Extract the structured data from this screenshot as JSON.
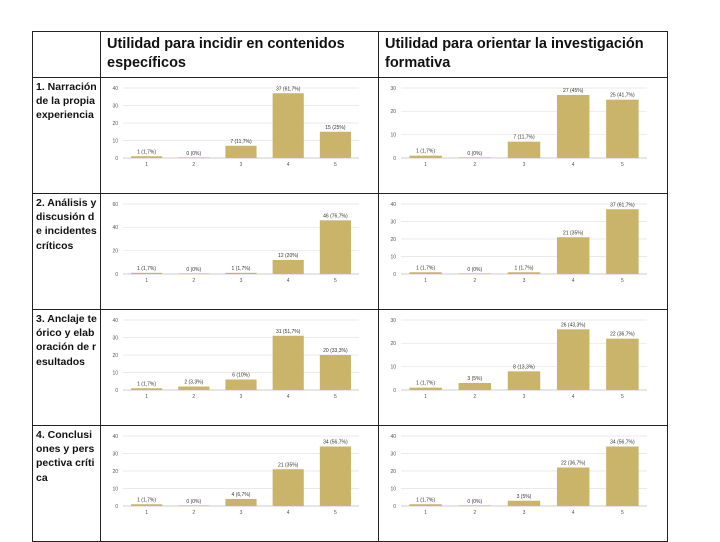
{
  "table": {
    "corner": "",
    "col_headers": [
      "Utilidad para incidir en contenidos específicos",
      "Utilidad para orientar la investigación formativa"
    ],
    "row_labels": [
      "1. Narración de la propia experiencia",
      "2. Análisis y discusión de incidentes críticos",
      "3. Anclaje teórico y elaboración de resultados",
      "4. Conclusiones y perspectiva crítica"
    ]
  },
  "colors": {
    "bar": "#c9b46a",
    "grid": "#e3e3e3",
    "border": "#222222"
  },
  "chart_data": [
    {
      "type": "bar",
      "row": 0,
      "col": 0,
      "categories": [
        "1",
        "2",
        "3",
        "4",
        "5"
      ],
      "values": [
        1,
        0,
        7,
        37,
        15
      ],
      "labels": [
        "1 (1,7%)",
        "0 (0%)",
        "7 (11,7%)",
        "37 (61,7%)",
        "15 (25%)"
      ],
      "ylim": [
        0,
        40
      ],
      "yticks": [
        0,
        10,
        20,
        30,
        40
      ]
    },
    {
      "type": "bar",
      "row": 0,
      "col": 1,
      "categories": [
        "1",
        "2",
        "3",
        "4",
        "5"
      ],
      "values": [
        1,
        0,
        7,
        27,
        25
      ],
      "labels": [
        "1 (1,7%)",
        "0 (0%)",
        "7 (11,7%)",
        "27 (45%)",
        "25 (41,7%)"
      ],
      "ylim": [
        0,
        30
      ],
      "yticks": [
        0,
        10,
        20,
        30
      ]
    },
    {
      "type": "bar",
      "row": 1,
      "col": 0,
      "categories": [
        "1",
        "2",
        "3",
        "4",
        "5"
      ],
      "values": [
        1,
        0,
        1,
        12,
        46
      ],
      "labels": [
        "1 (1,7%)",
        "0 (0%)",
        "1 (1,7%)",
        "12 (20%)",
        "46 (76,7%)"
      ],
      "ylim": [
        0,
        60
      ],
      "yticks": [
        0,
        20,
        40,
        60
      ]
    },
    {
      "type": "bar",
      "row": 1,
      "col": 1,
      "categories": [
        "1",
        "2",
        "3",
        "4",
        "5"
      ],
      "values": [
        1,
        0,
        1,
        21,
        37
      ],
      "labels": [
        "1 (1,7%)",
        "0 (0%)",
        "1 (1,7%)",
        "21 (35%)",
        "37 (61,7%)"
      ],
      "ylim": [
        0,
        40
      ],
      "yticks": [
        0,
        10,
        20,
        30,
        40
      ]
    },
    {
      "type": "bar",
      "row": 2,
      "col": 0,
      "categories": [
        "1",
        "2",
        "3",
        "4",
        "5"
      ],
      "values": [
        1,
        2,
        6,
        31,
        20
      ],
      "labels": [
        "1 (1,7%)",
        "2 (3,3%)",
        "6 (10%)",
        "31 (51,7%)",
        "20 (33,3%)"
      ],
      "ylim": [
        0,
        40
      ],
      "yticks": [
        0,
        10,
        20,
        30,
        40
      ]
    },
    {
      "type": "bar",
      "row": 2,
      "col": 1,
      "categories": [
        "1",
        "2",
        "3",
        "4",
        "5"
      ],
      "values": [
        1,
        3,
        8,
        26,
        22
      ],
      "labels": [
        "1 (1,7%)",
        "3 (5%)",
        "8 (13,3%)",
        "26 (43,3%)",
        "22 (36,7%)"
      ],
      "ylim": [
        0,
        30
      ],
      "yticks": [
        0,
        10,
        20,
        30
      ]
    },
    {
      "type": "bar",
      "row": 3,
      "col": 0,
      "categories": [
        "1",
        "2",
        "3",
        "4",
        "5"
      ],
      "values": [
        1,
        0,
        4,
        21,
        34
      ],
      "labels": [
        "1 (1,7%)",
        "0 (0%)",
        "4 (6,7%)",
        "21 (35%)",
        "34 (56,7%)"
      ],
      "ylim": [
        0,
        40
      ],
      "yticks": [
        0,
        10,
        20,
        30,
        40
      ]
    },
    {
      "type": "bar",
      "row": 3,
      "col": 1,
      "categories": [
        "1",
        "2",
        "3",
        "4",
        "5"
      ],
      "values": [
        1,
        0,
        3,
        22,
        34
      ],
      "labels": [
        "1 (1,7%)",
        "0 (0%)",
        "3 (5%)",
        "22 (36,7%)",
        "34 (56,7%)"
      ],
      "ylim": [
        0,
        40
      ],
      "yticks": [
        0,
        10,
        20,
        30,
        40
      ]
    }
  ]
}
